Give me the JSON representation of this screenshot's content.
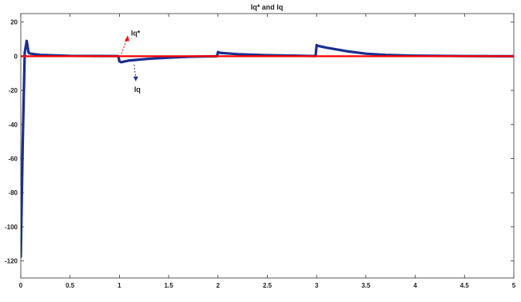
{
  "chart_data": {
    "type": "line",
    "title": "Iq* and Iq",
    "xlabel": "",
    "ylabel": "",
    "xlim": [
      0,
      5
    ],
    "ylim": [
      -130,
      25
    ],
    "xticks": [
      0,
      0.5,
      1,
      1.5,
      2,
      2.5,
      3,
      3.5,
      4,
      4.5,
      5
    ],
    "xtick_labels": [
      "0",
      "0.5",
      "1",
      "1.5",
      "2",
      "2.5",
      "3",
      "3.5",
      "4",
      "4.5",
      "5"
    ],
    "yticks": [
      20,
      0,
      -20,
      -40,
      -60,
      -80,
      -100,
      -120
    ],
    "ytick_labels": [
      "20",
      "0",
      "-20",
      "-40",
      "-60",
      "-80",
      "-100",
      "-120"
    ],
    "grid": false,
    "series": [
      {
        "name": "Iq*",
        "color": "#ff0000",
        "x": [
          0,
          5
        ],
        "y": [
          0,
          0
        ]
      },
      {
        "name": "Iq",
        "color": "#1a2f8f",
        "x": [
          0,
          0.005,
          0.02,
          0.04,
          0.06,
          0.08,
          0.1,
          0.2,
          0.5,
          0.99,
          1.0,
          1.02,
          1.1,
          1.3,
          1.5,
          1.7,
          1.99,
          2.0,
          2.02,
          2.2,
          2.5,
          2.8,
          2.99,
          3.0,
          3.02,
          3.1,
          3.3,
          3.5,
          3.7,
          4.0,
          4.5,
          5.0
        ],
        "y": [
          -118,
          -100,
          -50,
          2,
          9,
          2,
          1.5,
          0.8,
          0.2,
          0.1,
          -3,
          -3.5,
          -2.5,
          -1.5,
          -0.8,
          -0.3,
          0,
          2.5,
          2,
          1.2,
          0.6,
          0.3,
          0.1,
          6.5,
          6,
          5,
          3,
          1.5,
          0.8,
          0.3,
          0.1,
          0
        ]
      }
    ],
    "annotations": [
      {
        "text": "Iq*",
        "target_series": "Iq*",
        "x": 1.02,
        "y": 0
      },
      {
        "text": "Iq",
        "target_series": "Iq",
        "x": 1.15,
        "y": -3
      }
    ]
  }
}
